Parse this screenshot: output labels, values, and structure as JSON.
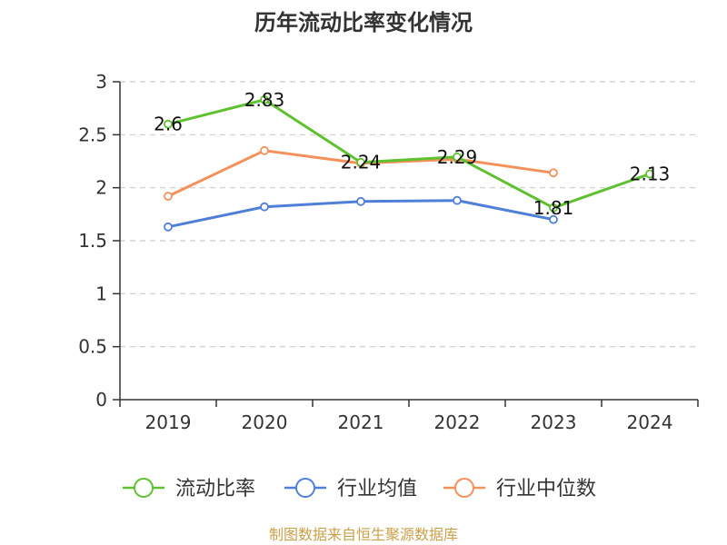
{
  "title": "历年流动比率变化情况",
  "source": "制图数据来自恒生聚源数据库",
  "colors": {
    "text": "#333333",
    "axis": "#333333",
    "grid": "#cccccc",
    "source": "#c8a04a"
  },
  "chart_data": {
    "type": "line",
    "title": "历年流动比率变化情况",
    "categories": [
      "2019",
      "2020",
      "2021",
      "2022",
      "2023",
      "2024"
    ],
    "ylim": [
      0,
      3
    ],
    "yticks": [
      "0",
      "0.5",
      "1",
      "1.5",
      "2",
      "2.5",
      "3"
    ],
    "grid": "horizontal dashed",
    "legend_position": "bottom",
    "series": [
      {
        "name": "流动比率",
        "color": "#5fc12f",
        "values": [
          2.6,
          2.83,
          2.24,
          2.29,
          1.81,
          2.13
        ],
        "labels": [
          "2.6",
          "2.83",
          "2.24",
          "2.29",
          "1.81",
          "2.13"
        ]
      },
      {
        "name": "行业均值",
        "color": "#4f7fd8",
        "values": [
          1.63,
          1.82,
          1.87,
          1.88,
          1.7,
          null
        ]
      },
      {
        "name": "行业中位数",
        "color": "#f4915a",
        "values": [
          1.92,
          2.35,
          2.23,
          2.27,
          2.14,
          null
        ]
      }
    ]
  }
}
